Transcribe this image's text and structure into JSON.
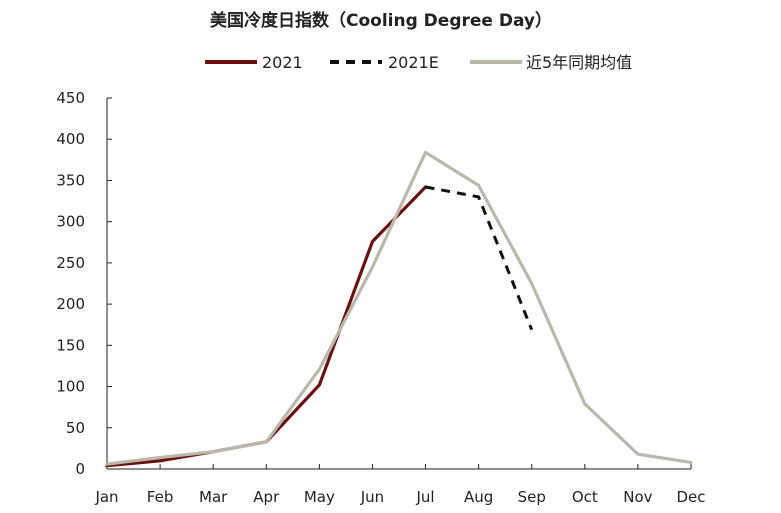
{
  "chart_data": {
    "type": "line",
    "title": "美国冷度日指数（Cooling Degree Day）",
    "xlabel": "",
    "ylabel": "",
    "categories": [
      "Jan",
      "Feb",
      "Mar",
      "Apr",
      "May",
      "Jun",
      "Jul",
      "Aug",
      "Sep",
      "Oct",
      "Nov",
      "Dec"
    ],
    "ylim": [
      0,
      450
    ],
    "yticks": [
      0,
      50,
      100,
      150,
      200,
      250,
      300,
      350,
      400,
      450
    ],
    "grid": false,
    "legend_position": "top-center",
    "series": [
      {
        "name": "2021",
        "values": [
          4,
          10,
          21,
          33,
          102,
          276,
          342,
          null,
          null,
          null,
          null,
          null
        ],
        "color": "#6b0f0f",
        "style": "solid"
      },
      {
        "name": "2021E",
        "values": [
          null,
          null,
          null,
          null,
          null,
          null,
          342,
          330,
          169,
          null,
          null,
          null
        ],
        "color": "#111111",
        "style": "dashed"
      },
      {
        "name": "近5年同期均值",
        "values": [
          6,
          14,
          21,
          33,
          121,
          245,
          384,
          344,
          225,
          79,
          18,
          8
        ],
        "color": "#b9b8aa",
        "style": "solid"
      }
    ]
  }
}
